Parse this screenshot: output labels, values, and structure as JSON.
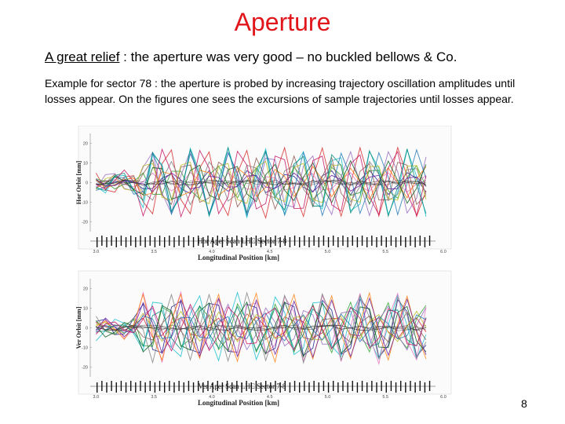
{
  "slide": {
    "title": "Aperture",
    "intro_underlined": "A great relief",
    "intro_rest": " : the aperture was very good – no buckled bellows & Co.",
    "example": "Example for sector 78 : the aperture is probed by increasing trajectory oscillation amplitudes until losses appear. On the figures one sees the excursions of sample trajectories until losses appear.",
    "page_number": "8"
  },
  "chart_data": [
    {
      "type": "line",
      "title": "Hor Aper Scan LHC Sector 7-8",
      "xlabel": "Longitudinal Position [km]",
      "ylabel": "Hor Orbit [mm]",
      "xlim": [
        2.95,
        6.0
      ],
      "ylim": [
        -25,
        25
      ],
      "xticks": [
        "3.0",
        "3.5",
        "4.0",
        "4.5",
        "5.0",
        "5.5",
        "6.0"
      ],
      "yticks": [
        "20",
        "10",
        "0",
        "-10",
        "-20"
      ],
      "description_series": "many sample trajectories oscillating with increasing amplitude (up to ~±18 mm) until losses",
      "colors": [
        "#1c1c8c",
        "#d62728",
        "#2ca02c",
        "#9467bd",
        "#17becf",
        "#e377c2",
        "#8c564b",
        "#7f7f7f",
        "#bcbd22",
        "#ff7f0e",
        "#1f77b4",
        "#0b5d1e",
        "#6a1b9a",
        "#00897b",
        "#c51162"
      ]
    },
    {
      "type": "line",
      "title": "Ver Aper Scan LHC Sector 7-8",
      "xlabel": "Longitudinal Position [km]",
      "ylabel": "Ver Orbit [mm]",
      "xlim": [
        2.95,
        6.0
      ],
      "ylim": [
        -25,
        25
      ],
      "xticks": [
        "3.0",
        "3.5",
        "4.0",
        "4.5",
        "5.0",
        "5.5",
        "6.0"
      ],
      "yticks": [
        "20",
        "10",
        "0",
        "-10",
        "-20"
      ],
      "colors": [
        "#1c1c8c",
        "#d62728",
        "#2ca02c",
        "#9467bd",
        "#17becf",
        "#e377c2",
        "#8c564b",
        "#7f7f7f",
        "#bcbd22",
        "#ff7f0e",
        "#1f77b4",
        "#0b5d1e",
        "#6a1b9a",
        "#00897b",
        "#c51162"
      ]
    }
  ]
}
